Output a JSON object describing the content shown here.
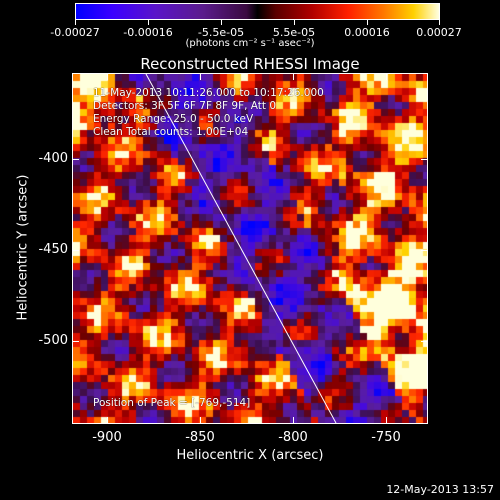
{
  "colorbar": {
    "tick_labels": [
      "-0.00027",
      "-0.00016",
      "-5.5e-05",
      "5.5e-05",
      "0.00016",
      "0.00027"
    ],
    "units": "(photons cm⁻² s⁻¹ asec⁻²)"
  },
  "title": "Reconstructed RHESSI Image",
  "info": {
    "time": "11-May-2013 10:11:26.000 to 10:17:26.000",
    "detectors": "Detectors: 3F 5F 6F 7F 8F 9F, Att 0",
    "energy": "Energy Range: 25.0 - 50.0 keV",
    "clean": "Clean    Total counts: 1.00E+04",
    "peak": "Position of Peak = [-769,-514]"
  },
  "axes": {
    "xtitle": "Heliocentric X (arcsec)",
    "ytitle": "Heliocentric Y (arcsec)",
    "x_ticks": [
      "-900",
      "-850",
      "-800",
      "-750"
    ],
    "y_ticks": [
      "-400",
      "-450",
      "-500"
    ]
  },
  "timestamp": "12-May-2013 13:57",
  "colors": {
    "background": "#000000",
    "foreground": "#ffffff"
  }
}
